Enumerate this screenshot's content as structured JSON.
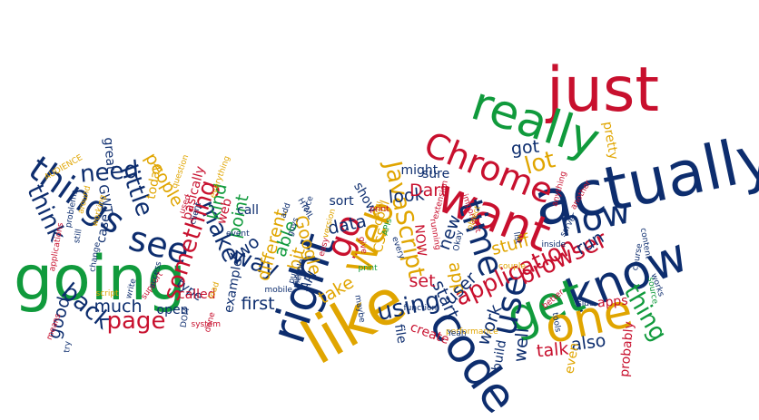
{
  "colors": {
    "background": "#ffffff",
    "red": "#c8102e",
    "green": "#109a3c",
    "blue": "#0d2d6e",
    "yellow": "#e0a500"
  },
  "words": [
    {
      "text": "just",
      "color": "red",
      "size": "xxl",
      "rotate": 0
    },
    {
      "text": "actually",
      "color": "blue",
      "size": "xxl",
      "rotate": -12
    },
    {
      "text": "really",
      "color": "green",
      "size": "xl",
      "rotate": 18
    },
    {
      "text": "Chrome",
      "color": "red",
      "size": "l",
      "rotate": 22
    },
    {
      "text": "want",
      "color": "red",
      "size": "xl",
      "rotate": 22
    },
    {
      "text": "going",
      "color": "green",
      "size": "xxl",
      "rotate": 0
    },
    {
      "text": "like",
      "color": "yellow",
      "size": "xxl",
      "rotate": -30
    },
    {
      "text": "right",
      "color": "blue",
      "size": "xl",
      "rotate": -72
    },
    {
      "text": "go",
      "color": "red",
      "size": "l",
      "rotate": -70
    },
    {
      "text": "code",
      "color": "blue",
      "size": "xl",
      "rotate": 55
    },
    {
      "text": "know",
      "color": "blue",
      "size": "xl",
      "rotate": -22
    },
    {
      "text": "get",
      "color": "green",
      "size": "xl",
      "rotate": -20
    },
    {
      "text": "one",
      "color": "yellow",
      "size": "xl",
      "rotate": -12
    },
    {
      "text": "use",
      "color": "blue",
      "size": "l",
      "rotate": -78
    },
    {
      "text": "things",
      "color": "blue",
      "size": "l",
      "rotate": 35
    },
    {
      "text": "see",
      "color": "blue",
      "size": "l",
      "rotate": 15
    },
    {
      "text": "Web",
      "color": "yellow",
      "size": "l",
      "rotate": -70
    },
    {
      "text": "JavaScript",
      "color": "yellow",
      "size": "m",
      "rotate": 78
    },
    {
      "text": "time",
      "color": "blue",
      "size": "l",
      "rotate": 72
    },
    {
      "text": "now",
      "color": "blue",
      "size": "l",
      "rotate": -12
    },
    {
      "text": "browser",
      "color": "red",
      "size": "m",
      "rotate": -25
    },
    {
      "text": "application",
      "color": "red",
      "size": "m",
      "rotate": -25
    },
    {
      "text": "thing",
      "color": "green",
      "size": "m",
      "rotate": 60
    },
    {
      "text": "lot",
      "color": "yellow",
      "size": "m",
      "rotate": -15
    },
    {
      "text": "think",
      "color": "blue",
      "size": "m",
      "rotate": 65
    },
    {
      "text": "back",
      "color": "blue",
      "size": "m",
      "rotate": 40
    },
    {
      "text": "make",
      "color": "blue",
      "size": "m",
      "rotate": 65
    },
    {
      "text": "way",
      "color": "blue",
      "size": "m",
      "rotate": 20
    },
    {
      "text": "page",
      "color": "red",
      "size": "m",
      "rotate": 0
    },
    {
      "text": "something",
      "color": "red",
      "size": "m",
      "rotate": -72
    },
    {
      "text": "need",
      "color": "blue",
      "size": "m",
      "rotate": -5
    },
    {
      "text": "little",
      "color": "blue",
      "size": "m",
      "rotate": 70
    },
    {
      "text": "Google",
      "color": "yellow",
      "size": "s",
      "rotate": 75
    },
    {
      "text": "data",
      "color": "blue",
      "size": "s",
      "rotate": -12
    },
    {
      "text": "look",
      "color": "blue",
      "size": "s",
      "rotate": -5
    },
    {
      "text": "Dart",
      "color": "red",
      "size": "s",
      "rotate": 0
    },
    {
      "text": "app",
      "color": "yellow",
      "size": "s",
      "rotate": 80
    },
    {
      "text": "new",
      "color": "blue",
      "size": "s",
      "rotate": -70
    },
    {
      "text": "got",
      "color": "blue",
      "size": "s",
      "rotate": -5
    },
    {
      "text": "pretty",
      "color": "yellow",
      "size": "xs",
      "rotate": 80
    },
    {
      "text": "using",
      "color": "blue",
      "size": "m",
      "rotate": -12
    },
    {
      "text": "also",
      "color": "blue",
      "size": "s",
      "rotate": -8
    },
    {
      "text": "work",
      "color": "blue",
      "size": "s",
      "rotate": -70
    },
    {
      "text": "user",
      "color": "blue",
      "size": "s",
      "rotate": -45
    },
    {
      "text": "start",
      "color": "blue",
      "size": "s",
      "rotate": 65
    },
    {
      "text": "stuff",
      "color": "yellow",
      "size": "s",
      "rotate": -15
    },
    {
      "text": "talk",
      "color": "red",
      "size": "s",
      "rotate": -5
    },
    {
      "text": "well",
      "color": "blue",
      "size": "s",
      "rotate": -85
    },
    {
      "text": "run",
      "color": "blue",
      "size": "s",
      "rotate": -30
    },
    {
      "text": "much",
      "color": "blue",
      "size": "s",
      "rotate": 0
    },
    {
      "text": "good",
      "color": "blue",
      "size": "s",
      "rotate": -75
    },
    {
      "text": "people",
      "color": "yellow",
      "size": "s",
      "rotate": 60
    },
    {
      "text": "kind",
      "color": "green",
      "size": "s",
      "rotate": -78
    },
    {
      "text": "point",
      "color": "green",
      "size": "s",
      "rotate": -78
    },
    {
      "text": "different",
      "color": "yellow",
      "size": "s",
      "rotate": -75
    },
    {
      "text": "able",
      "color": "green",
      "size": "s",
      "rotate": -70
    },
    {
      "text": "first",
      "color": "blue",
      "size": "s",
      "rotate": 0
    },
    {
      "text": "two",
      "color": "blue",
      "size": "s",
      "rotate": -40
    },
    {
      "text": "bit",
      "color": "yellow",
      "size": "s",
      "rotate": -75
    },
    {
      "text": "take",
      "color": "yellow",
      "size": "s",
      "rotate": -30
    },
    {
      "text": "set",
      "color": "red",
      "size": "s",
      "rotate": 0
    },
    {
      "text": "apps",
      "color": "red",
      "size": "xs",
      "rotate": -5
    },
    {
      "text": "file",
      "color": "blue",
      "size": "xs",
      "rotate": 80
    },
    {
      "text": "build",
      "color": "blue",
      "size": "xs",
      "rotate": -80
    },
    {
      "text": "probably",
      "color": "red",
      "size": "xs",
      "rotate": -85
    },
    {
      "text": "even",
      "color": "yellow",
      "size": "xs",
      "rotate": -80
    },
    {
      "text": "create",
      "color": "red",
      "size": "xs",
      "rotate": 20
    },
    {
      "text": "show",
      "color": "blue",
      "size": "xs",
      "rotate": 60
    },
    {
      "text": "sort",
      "color": "blue",
      "size": "xs",
      "rotate": 0
    },
    {
      "text": "might",
      "color": "blue",
      "size": "xs",
      "rotate": 0
    },
    {
      "text": "sure",
      "color": "blue",
      "size": "xs",
      "rotate": 0
    },
    {
      "text": "cool",
      "color": "yellow",
      "size": "xs",
      "rotate": -70
    },
    {
      "text": "CSS",
      "color": "yellow",
      "size": "xs",
      "rotate": -75
    },
    {
      "text": "NOW",
      "color": "red",
      "size": "xs",
      "rotate": 85
    },
    {
      "text": "API",
      "color": "blue",
      "size": "xs",
      "rotate": -60
    },
    {
      "text": "call",
      "color": "blue",
      "size": "xs",
      "rotate": 0
    },
    {
      "text": "web",
      "color": "red",
      "size": "xs",
      "rotate": -75
    },
    {
      "text": "example",
      "color": "blue",
      "size": "xs",
      "rotate": -80
    },
    {
      "text": "open",
      "color": "blue",
      "size": "xs",
      "rotate": 0
    },
    {
      "text": "type",
      "color": "blue",
      "size": "xs",
      "rotate": 35
    },
    {
      "text": "called",
      "color": "red",
      "size": "xs",
      "rotate": 0
    },
    {
      "text": "basically",
      "color": "red",
      "size": "xs",
      "rotate": -75
    },
    {
      "text": "today",
      "color": "yellow",
      "size": "xs",
      "rotate": -80
    },
    {
      "text": "great",
      "color": "blue",
      "size": "xs",
      "rotate": 85
    },
    {
      "text": "AUDIENCE",
      "color": "yellow",
      "size": "xxs",
      "rotate": -30
    },
    {
      "text": "GWT",
      "color": "blue",
      "size": "xs",
      "rotate": 80
    },
    {
      "text": "case",
      "color": "blue",
      "size": "xs",
      "rotate": -80
    },
    {
      "text": "content",
      "color": "blue",
      "size": "xxs",
      "rotate": 80
    },
    {
      "text": "server",
      "color": "blue",
      "size": "xxs",
      "rotate": -60
    },
    {
      "text": "tools",
      "color": "blue",
      "size": "xxs",
      "rotate": 80
    },
    {
      "text": "works",
      "color": "blue",
      "size": "xxs",
      "rotate": 70
    },
    {
      "text": "course",
      "color": "blue",
      "size": "xxs",
      "rotate": -80
    },
    {
      "text": "source",
      "color": "green",
      "size": "xxs",
      "rotate": 80
    },
    {
      "text": "side",
      "color": "blue",
      "size": "xxs",
      "rotate": 0
    },
    {
      "text": "inside",
      "color": "blue",
      "size": "xxs",
      "rotate": 0
    },
    {
      "text": "another",
      "color": "red",
      "size": "xxs",
      "rotate": -60
    },
    {
      "text": "extension",
      "color": "red",
      "size": "xxs",
      "rotate": -75
    },
    {
      "text": "list",
      "color": "blue",
      "size": "xxs",
      "rotate": 80
    },
    {
      "text": "couple",
      "color": "yellow",
      "size": "xxs",
      "rotate": 0
    },
    {
      "text": "performance",
      "color": "yellow",
      "size": "xxs",
      "rotate": 0
    },
    {
      "text": "function",
      "color": "blue",
      "size": "xxs",
      "rotate": 0
    },
    {
      "text": "important",
      "color": "red",
      "size": "xxs",
      "rotate": 70
    },
    {
      "text": "running",
      "color": "red",
      "size": "xxs",
      "rotate": 80
    },
    {
      "text": "maybe",
      "color": "blue",
      "size": "xxs",
      "rotate": 80
    },
    {
      "text": "every",
      "color": "blue",
      "size": "xxs",
      "rotate": 70
    },
    {
      "text": "give",
      "color": "red",
      "size": "xxs",
      "rotate": 80
    },
    {
      "text": "print",
      "color": "green",
      "size": "xxs",
      "rotate": 0
    },
    {
      "text": "simple",
      "color": "blue",
      "size": "xxs",
      "rotate": -75
    },
    {
      "text": "easy",
      "color": "red",
      "size": "xxs",
      "rotate": -75
    },
    {
      "text": "version",
      "color": "yellow",
      "size": "xxs",
      "rotate": -75
    },
    {
      "text": "nice",
      "color": "blue",
      "size": "xxs",
      "rotate": -70
    },
    {
      "text": "guys",
      "color": "blue",
      "size": "xxs",
      "rotate": -70
    },
    {
      "text": "put",
      "color": "blue",
      "size": "xxs",
      "rotate": -75
    },
    {
      "text": "next",
      "color": "blue",
      "size": "xxs",
      "rotate": -75
    },
    {
      "text": "mobile",
      "color": "blue",
      "size": "xxs",
      "rotate": 0
    },
    {
      "text": "event",
      "color": "blue",
      "size": "xxs",
      "rotate": 0
    },
    {
      "text": "everything",
      "color": "yellow",
      "size": "xxs",
      "rotate": -70
    },
    {
      "text": "client",
      "color": "blue",
      "size": "xxs",
      "rotate": -75
    },
    {
      "text": "done",
      "color": "red",
      "size": "xxs",
      "rotate": -75
    },
    {
      "text": "DOM",
      "color": "blue",
      "size": "xxs",
      "rotate": -80
    },
    {
      "text": "system",
      "color": "red",
      "size": "xxs",
      "rotate": 0
    },
    {
      "text": "load",
      "color": "yellow",
      "size": "xxs",
      "rotate": -70
    },
    {
      "text": "used",
      "color": "red",
      "size": "xxs",
      "rotate": -70
    },
    {
      "text": "question",
      "color": "yellow",
      "size": "xxs",
      "rotate": -70
    },
    {
      "text": "working",
      "color": "yellow",
      "size": "xxs",
      "rotate": -75
    },
    {
      "text": "around",
      "color": "yellow",
      "size": "xxs",
      "rotate": -75
    },
    {
      "text": "problems",
      "color": "blue",
      "size": "xxs",
      "rotate": -80
    },
    {
      "text": "still",
      "color": "blue",
      "size": "xxs",
      "rotate": -80
    },
    {
      "text": "applications",
      "color": "red",
      "size": "xxs",
      "rotate": -80
    },
    {
      "text": "change",
      "color": "blue",
      "size": "xxs",
      "rotate": -80
    },
    {
      "text": "support",
      "color": "red",
      "size": "xxs",
      "rotate": -55
    },
    {
      "text": "write",
      "color": "blue",
      "size": "xxs",
      "rotate": -75
    },
    {
      "text": "script",
      "color": "yellow",
      "size": "xxs",
      "rotate": 0
    },
    {
      "text": "try",
      "color": "blue",
      "size": "xxs",
      "rotate": -85
    },
    {
      "text": "means",
      "color": "red",
      "size": "xxs",
      "rotate": -70
    },
    {
      "text": "better",
      "color": "red",
      "size": "xxs",
      "rotate": -40
    },
    {
      "text": "anything",
      "color": "red",
      "size": "xxs",
      "rotate": -75
    },
    {
      "text": "object",
      "color": "yellow",
      "size": "xxs",
      "rotate": -70
    },
    {
      "text": "Okay",
      "color": "blue",
      "size": "xxs",
      "rotate": -80
    },
    {
      "text": "Yeah",
      "color": "blue",
      "size": "xxs",
      "rotate": 0
    },
    {
      "text": "HTML",
      "color": "blue",
      "size": "xxs",
      "rotate": 60
    },
    {
      "text": "add",
      "color": "blue",
      "size": "xxs",
      "rotate": -70
    },
    {
      "text": "access",
      "color": "blue",
      "size": "xxs",
      "rotate": -75
    },
    {
      "text": "APIs",
      "color": "green",
      "size": "xxs",
      "rotate": -75
    },
    {
      "text": "well",
      "color": "yellow",
      "size": "xxs",
      "rotate": -75
    },
    {
      "text": "print",
      "color": "red",
      "size": "xxs",
      "rotate": 0
    }
  ]
}
